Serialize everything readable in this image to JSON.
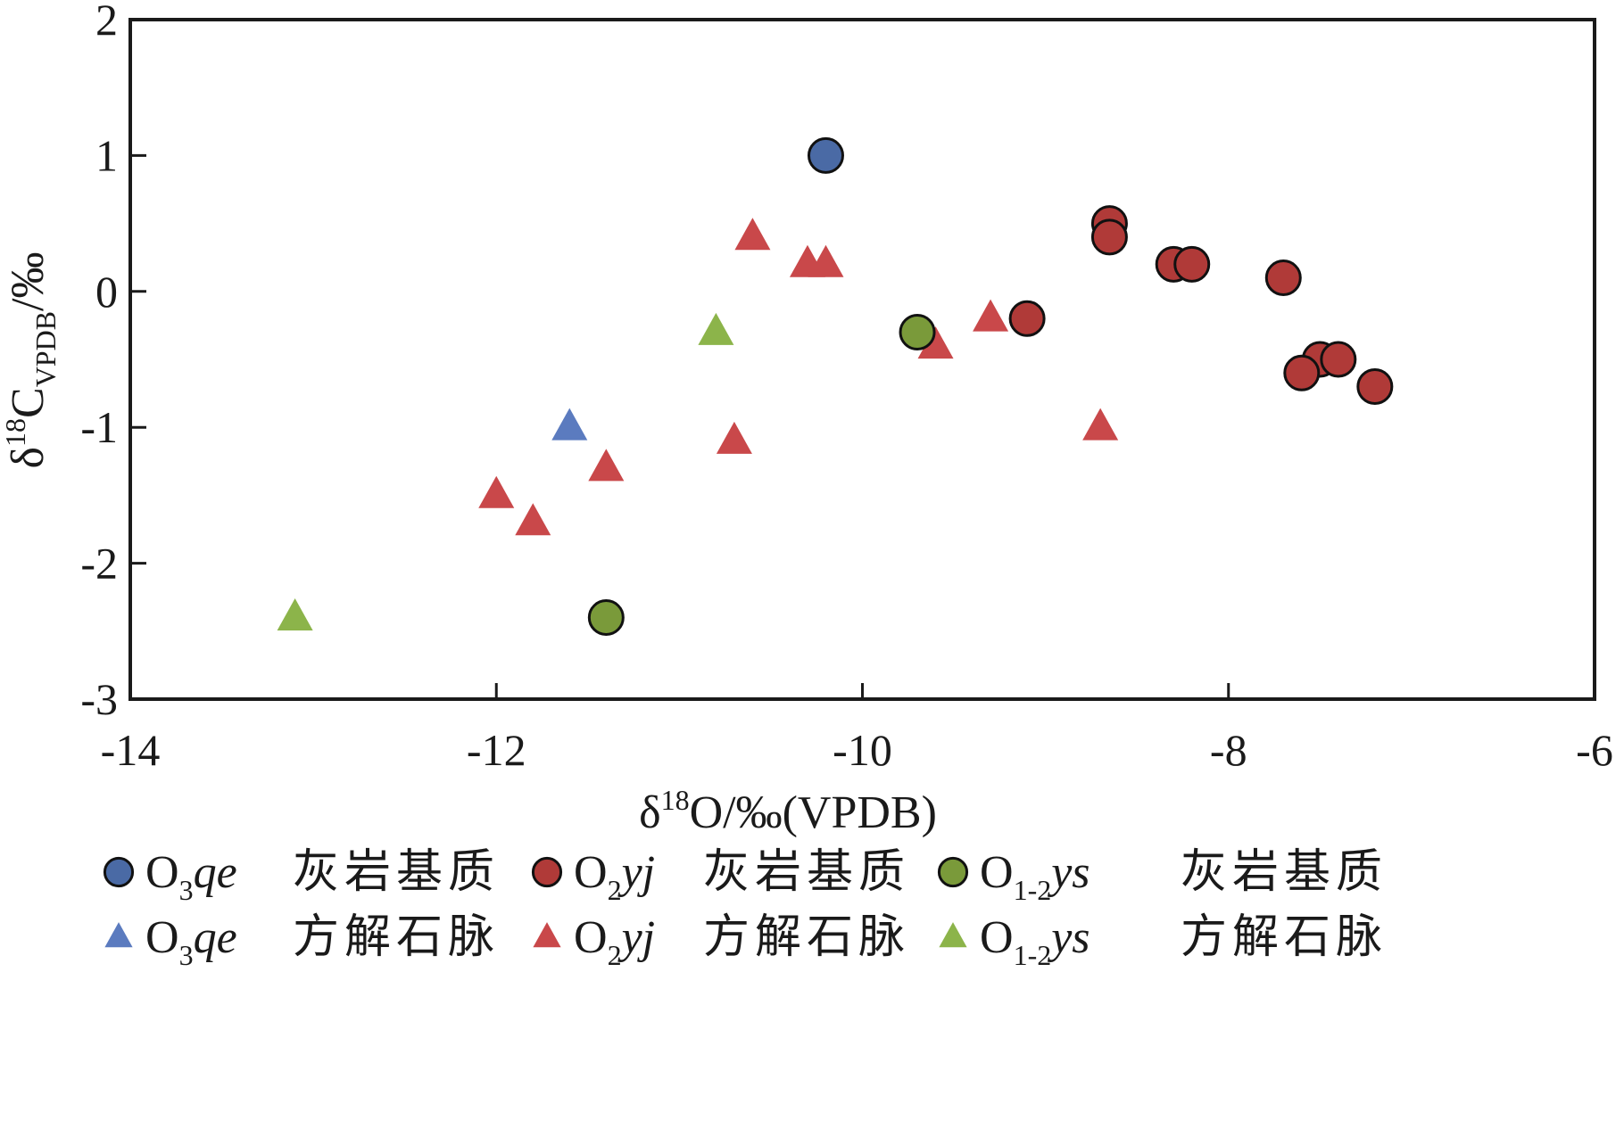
{
  "chart_data": {
    "type": "scatter",
    "xlim": [
      -14,
      -6
    ],
    "ylim": [
      -3,
      2
    ],
    "x_ticks": [
      -14,
      -12,
      -10,
      -8,
      -6
    ],
    "y_ticks": [
      -3,
      -2,
      -1,
      0,
      1,
      2
    ],
    "x_tick_labels": [
      "-14",
      "-12",
      "-10",
      "-8",
      "-6"
    ],
    "y_tick_labels": [
      "-3",
      "-2",
      "-1",
      "0",
      "1",
      "2"
    ],
    "xlabel": {
      "delta": "δ",
      "sup": "18",
      "rest": "O/‰(VPDB)"
    },
    "ylabel": {
      "delta": "δ",
      "sup": "18",
      "main": "C",
      "sub": "VPDB",
      "rest": "/‰"
    },
    "grid": false,
    "legend_position": "bottom",
    "series": [
      {
        "formation": {
          "base": "O",
          "sub": "3",
          "italic": "qe"
        },
        "lithology": "灰岩基质",
        "marker": "circle",
        "color": "#4a6aa5",
        "points": [
          [
            -10.2,
            1.0
          ]
        ]
      },
      {
        "formation": {
          "base": "O",
          "sub": "2",
          "italic": "yj"
        },
        "lithology": "灰岩基质",
        "marker": "circle",
        "color": "#b03a38",
        "points": [
          [
            -8.65,
            0.5
          ],
          [
            -8.65,
            0.4
          ],
          [
            -8.3,
            0.2
          ],
          [
            -8.2,
            0.2
          ],
          [
            -7.7,
            0.1
          ],
          [
            -9.1,
            -0.2
          ],
          [
            -7.5,
            -0.5
          ],
          [
            -7.4,
            -0.5
          ],
          [
            -7.6,
            -0.6
          ],
          [
            -7.2,
            -0.7
          ]
        ]
      },
      {
        "formation": {
          "base": "O",
          "sub": "1-2",
          "italic": "ys"
        },
        "lithology": "灰岩基质",
        "marker": "circle",
        "color": "#7a9a3a",
        "points": [
          [
            -9.7,
            -0.3
          ],
          [
            -11.4,
            -2.4
          ]
        ]
      },
      {
        "formation": {
          "base": "O",
          "sub": "3",
          "italic": "qe"
        },
        "lithology": "方解石脉",
        "marker": "triangle",
        "color": "#5b7bbf",
        "points": [
          [
            -11.6,
            -1.0
          ]
        ]
      },
      {
        "formation": {
          "base": "O",
          "sub": "2",
          "italic": "yj"
        },
        "lithology": "方解石脉",
        "marker": "triangle",
        "color": "#c9484a",
        "points": [
          [
            -10.6,
            0.4
          ],
          [
            -10.3,
            0.2
          ],
          [
            -10.2,
            0.2
          ],
          [
            -9.3,
            -0.2
          ],
          [
            -9.6,
            -0.4
          ],
          [
            -10.7,
            -1.1
          ],
          [
            -8.7,
            -1.0
          ],
          [
            -11.4,
            -1.3
          ],
          [
            -12.0,
            -1.5
          ],
          [
            -11.8,
            -1.7
          ]
        ]
      },
      {
        "formation": {
          "base": "O",
          "sub": "1-2",
          "italic": "ys"
        },
        "lithology": "方解石脉",
        "marker": "triangle",
        "color": "#8cb44a",
        "points": [
          [
            -10.8,
            -0.3
          ],
          [
            -13.1,
            -2.4
          ]
        ]
      }
    ]
  }
}
